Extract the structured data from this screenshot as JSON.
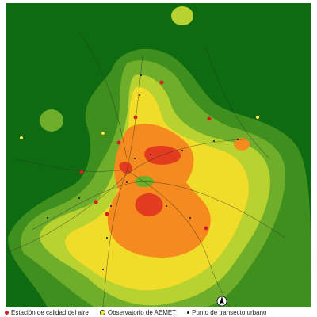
{
  "legend": {
    "items": [
      {
        "label": "Estación de calidad del aire"
      },
      {
        "label": "Observatorio de AEMET"
      },
      {
        "label": "Punto de transecto urbano"
      }
    ]
  }
}
